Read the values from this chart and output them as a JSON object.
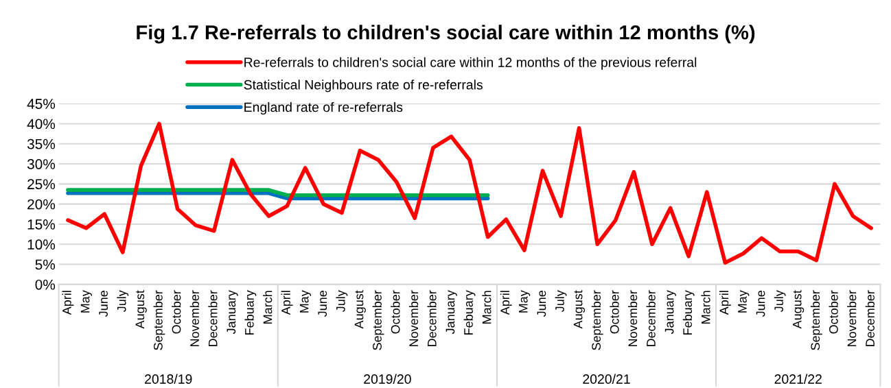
{
  "chart_data": {
    "type": "line",
    "title": "Fig 1.7 Re-referrals to children's social care within 12 months (%)",
    "categories": [
      "April",
      "May",
      "June",
      "July",
      "August",
      "September",
      "October",
      "November",
      "December",
      "January",
      "Febuary",
      "March",
      "April",
      "May",
      "June",
      "July",
      "August",
      "September",
      "October",
      "November",
      "December",
      "January",
      "Febuary",
      "March",
      "April",
      "May",
      "June",
      "July",
      "August",
      "September",
      "October",
      "November",
      "December",
      "January",
      "Febuary",
      "March",
      "April",
      "May",
      "June",
      "July",
      "August",
      "September",
      "October",
      "November",
      "December"
    ],
    "series": [
      {
        "name": "Re-referrals to children's social care within 12 months of the previous referral",
        "color": "#ff0000",
        "values": [
          16,
          14,
          17.5,
          8,
          29.5,
          40,
          18.8,
          14.7,
          13.3,
          31,
          22.5,
          17,
          19.5,
          29,
          20,
          17.8,
          33.3,
          31,
          25.5,
          16.5,
          34,
          36.8,
          31,
          11.8,
          16.2,
          8.5,
          28.3,
          17,
          38.9,
          10,
          16,
          28,
          10,
          19,
          7,
          23,
          5.4,
          7.7,
          11.5,
          8.2,
          8.2,
          6,
          25,
          17,
          14
        ]
      },
      {
        "name": "Statistical Neighbours rate of re-referrals",
        "color": "#00b050",
        "values": [
          23.5,
          23.5,
          23.5,
          23.5,
          23.5,
          23.5,
          23.5,
          23.5,
          23.5,
          23.5,
          23.5,
          23.5,
          22.2,
          22.2,
          22.2,
          22.2,
          22.2,
          22.2,
          22.2,
          22.2,
          22.2,
          22.2,
          22.2,
          22.2,
          null,
          null,
          null,
          null,
          null,
          null,
          null,
          null,
          null,
          null,
          null,
          null,
          null,
          null,
          null,
          null,
          null,
          null,
          null,
          null,
          null
        ]
      },
      {
        "name": "England rate of re-referrals",
        "color": "#0070c0",
        "values": [
          22.7,
          22.7,
          22.7,
          22.7,
          22.7,
          22.7,
          22.7,
          22.7,
          22.7,
          22.7,
          22.7,
          22.7,
          21.4,
          21.4,
          21.4,
          21.4,
          21.4,
          21.4,
          21.4,
          21.4,
          21.4,
          21.4,
          21.4,
          21.4,
          null,
          null,
          null,
          null,
          null,
          null,
          null,
          null,
          null,
          null,
          null,
          null,
          null,
          null,
          null,
          null,
          null,
          null,
          null,
          null,
          null
        ]
      }
    ],
    "ylim": [
      0,
      45
    ],
    "yticks": [
      {
        "value": 0,
        "label": "0%"
      },
      {
        "value": 5,
        "label": "5%"
      },
      {
        "value": 10,
        "label": "10%"
      },
      {
        "value": 15,
        "label": "15%"
      },
      {
        "value": 20,
        "label": "20%"
      },
      {
        "value": 25,
        "label": "25%"
      },
      {
        "value": 30,
        "label": "30%"
      },
      {
        "value": 35,
        "label": "35%"
      },
      {
        "value": 40,
        "label": "40%"
      },
      {
        "value": 45,
        "label": "45%"
      }
    ],
    "annotations": [
      "2018/19",
      "2019/20",
      "2020/21",
      "2021/22"
    ],
    "grid": "y",
    "legend": "top",
    "marker": "none",
    "line_style": "solid"
  }
}
